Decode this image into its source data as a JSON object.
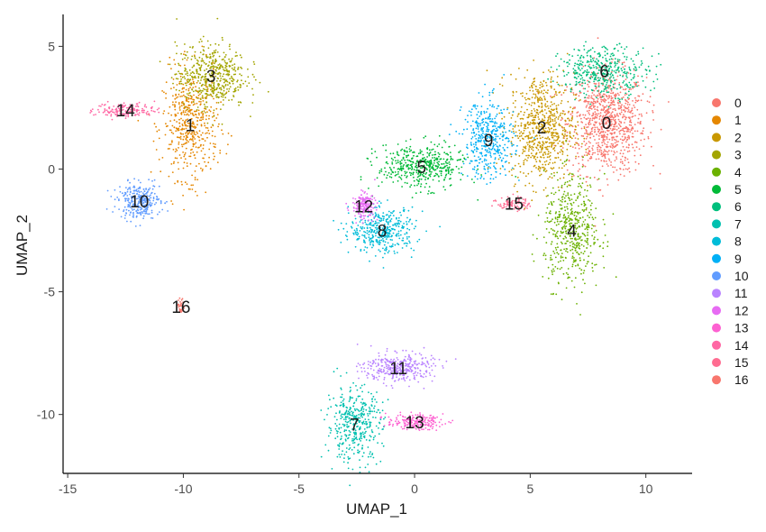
{
  "chart_data": {
    "type": "scatter",
    "xlabel": "UMAP_1",
    "ylabel": "UMAP_2",
    "xlim": [
      -15.2,
      12.0
    ],
    "ylim": [
      -12.4,
      6.3
    ],
    "x_ticks": [
      -15,
      -10,
      -5,
      0,
      5,
      10
    ],
    "y_ticks": [
      -10,
      -5,
      0,
      5
    ],
    "x_tick_labels": [
      "-15",
      "-10",
      "-5",
      "0",
      "5",
      "10"
    ],
    "y_tick_labels": [
      "-10",
      "-5",
      "0",
      "5"
    ],
    "grid": false,
    "legend_position": "right",
    "clusters": [
      {
        "name": "0",
        "color": "#F8766D",
        "label_pos": [
          8.3,
          1.9
        ],
        "spread": [
          1.7,
          2.1
        ],
        "n": 900,
        "label_bg": "#F8766D"
      },
      {
        "name": "1",
        "color": "#E58700",
        "label_pos": [
          -9.7,
          1.8
        ],
        "spread": [
          1.2,
          2.2
        ],
        "n": 500
      },
      {
        "name": "2",
        "color": "#C99800",
        "label_pos": [
          5.5,
          1.7
        ],
        "spread": [
          1.4,
          2.2
        ],
        "n": 700
      },
      {
        "name": "3",
        "color": "#A3A500",
        "label_pos": [
          -8.8,
          3.8
        ],
        "spread": [
          1.5,
          1.3
        ],
        "n": 500
      },
      {
        "name": "4",
        "color": "#6BB100",
        "label_pos": [
          6.8,
          -2.5
        ],
        "spread": [
          1.2,
          2.2
        ],
        "n": 500
      },
      {
        "name": "5",
        "color": "#00BA38",
        "label_pos": [
          0.3,
          0.1
        ],
        "spread": [
          1.9,
          0.9
        ],
        "n": 450
      },
      {
        "name": "6",
        "color": "#00BF7D",
        "label_pos": [
          8.2,
          4.0
        ],
        "spread": [
          1.9,
          1.0
        ],
        "n": 400
      },
      {
        "name": "7",
        "color": "#00C0AF",
        "label_pos": [
          -2.6,
          -10.4
        ],
        "spread": [
          1.2,
          1.5
        ],
        "n": 400
      },
      {
        "name": "8",
        "color": "#00BCD8",
        "label_pos": [
          -1.4,
          -2.5
        ],
        "spread": [
          1.4,
          0.9
        ],
        "n": 400
      },
      {
        "name": "9",
        "color": "#00B0F6",
        "label_pos": [
          3.2,
          1.2
        ],
        "spread": [
          1.1,
          1.6
        ],
        "n": 400
      },
      {
        "name": "10",
        "color": "#619CFF",
        "label_pos": [
          -11.9,
          -1.3
        ],
        "spread": [
          0.9,
          0.7
        ],
        "n": 300
      },
      {
        "name": "11",
        "color": "#B983FF",
        "label_pos": [
          -0.7,
          -8.1
        ],
        "spread": [
          1.5,
          0.6
        ],
        "n": 350
      },
      {
        "name": "12",
        "color": "#E76BF3",
        "label_pos": [
          -2.2,
          -1.5
        ],
        "spread": [
          0.5,
          0.5
        ],
        "n": 200
      },
      {
        "name": "13",
        "color": "#FD61D1",
        "label_pos": [
          0.0,
          -10.3
        ],
        "spread": [
          1.2,
          0.3
        ],
        "n": 200
      },
      {
        "name": "14",
        "color": "#FF67A4",
        "label_pos": [
          -12.5,
          2.4
        ],
        "spread": [
          1.3,
          0.3
        ],
        "n": 150
      },
      {
        "name": "15",
        "color": "#FF6C91",
        "label_pos": [
          4.3,
          -1.4
        ],
        "spread": [
          0.7,
          0.3
        ],
        "n": 80
      },
      {
        "name": "16",
        "color": "#F8766D",
        "label_pos": [
          -10.1,
          -5.6
        ],
        "spread": [
          0.15,
          0.3
        ],
        "n": 30
      }
    ]
  }
}
